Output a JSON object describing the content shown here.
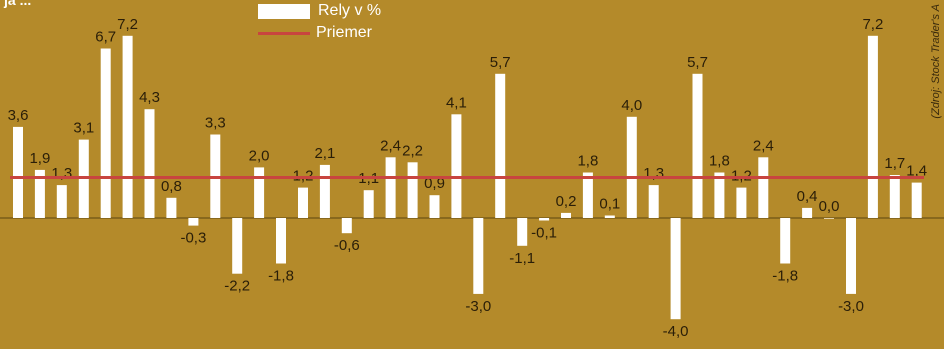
{
  "title_fragment": "ja  ...",
  "source": "(Zdroj: Stock Trader's A",
  "legend": {
    "bars": "Rely v %",
    "line": "Priemer"
  },
  "colors": {
    "background": "#b48a2a",
    "bar": "#ffffff",
    "line": "#c8453f",
    "text": "#2a1e08"
  },
  "chart_data": {
    "type": "bar",
    "series": [
      {
        "name": "Rely v %",
        "values": [
          3.6,
          1.9,
          1.3,
          3.1,
          6.7,
          7.2,
          4.3,
          0.8,
          -0.3,
          3.3,
          -2.2,
          2.0,
          -1.8,
          1.2,
          2.1,
          -0.6,
          1.1,
          2.4,
          2.2,
          0.9,
          4.1,
          -3.0,
          5.7,
          -1.1,
          -0.1,
          0.2,
          1.8,
          0.1,
          4.0,
          1.3,
          -4.0,
          5.7,
          1.8,
          1.2,
          2.4,
          -1.8,
          0.4,
          0.0,
          -3.0,
          7.2,
          1.7,
          1.4
        ]
      }
    ],
    "labels": [
      "3,6",
      "1,9",
      "1,3",
      "3,1",
      "6,7",
      "7,2",
      "4,3",
      "0,8",
      "-0,3",
      "3,3",
      "-2,2",
      "2,0",
      "-1,8",
      "1,2",
      "2,1",
      "-0,6",
      "1,1",
      "2,4",
      "2,2",
      "0,9",
      "4,1",
      "-3,0",
      "5,7",
      "-1,1",
      "-0,1",
      "0,2",
      "1,8",
      "0,1",
      "4,0",
      "1,3",
      "-4,0",
      "5,7",
      "1,8",
      "1,2",
      "2,4",
      "-1,8",
      "0,4",
      "0,0",
      "-3,0",
      "7,2",
      "1,7",
      "1,4"
    ],
    "average": 1.6,
    "ylim": [
      -4.0,
      7.2
    ]
  }
}
